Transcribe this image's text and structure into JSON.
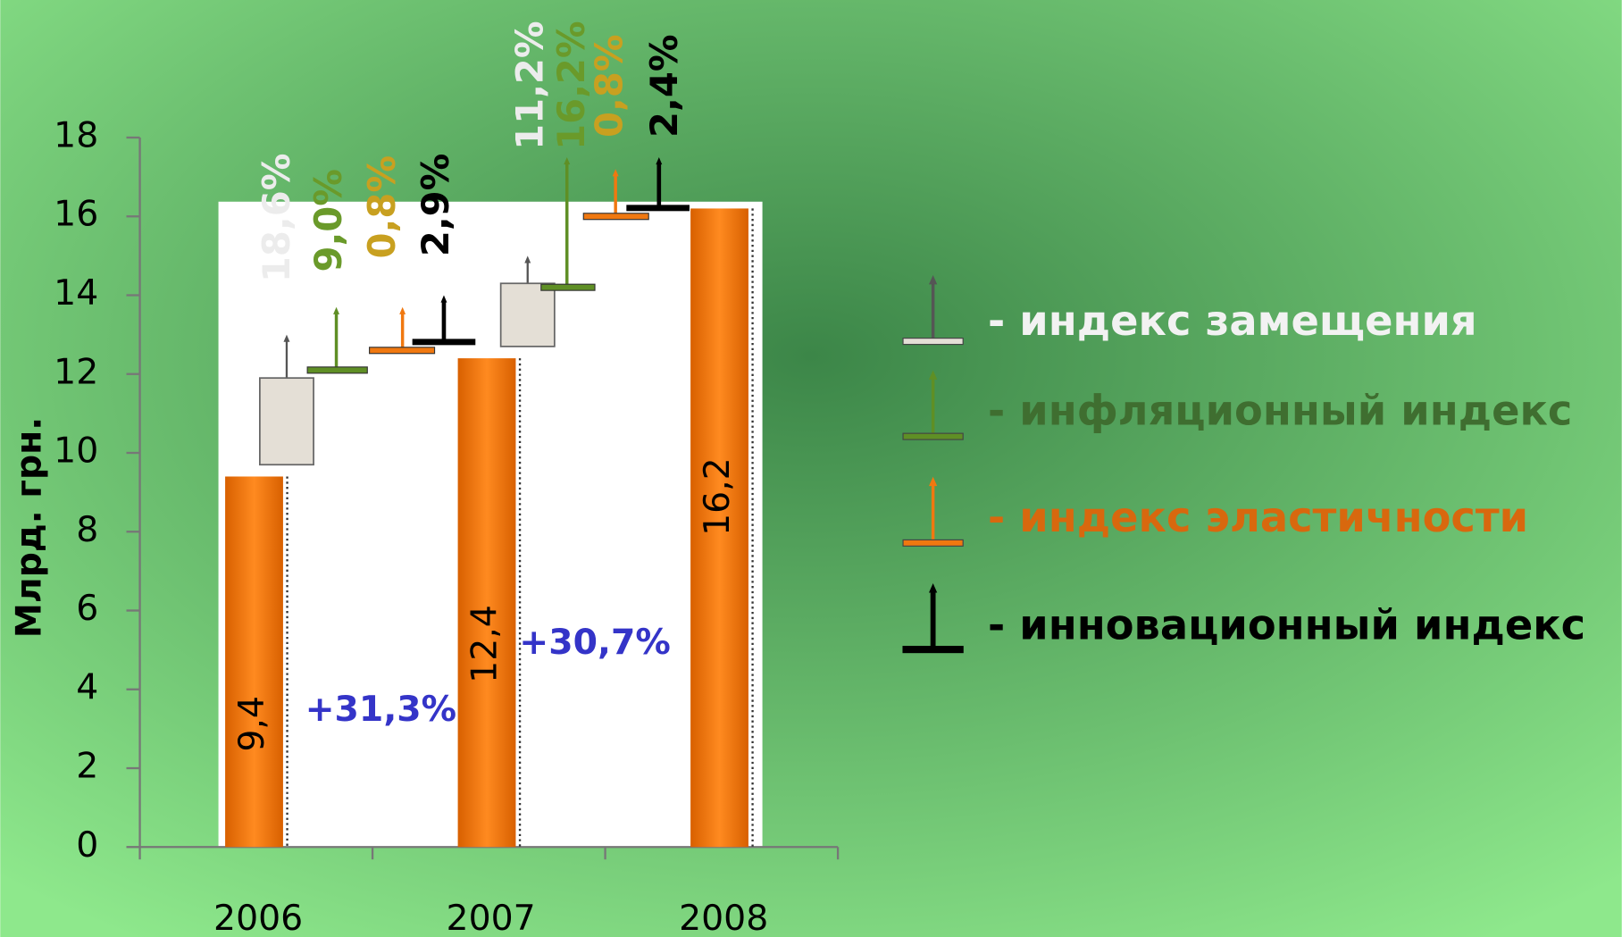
{
  "chart_data": {
    "type": "bar",
    "y_label": "Млрд. грн.",
    "categories": [
      "2006",
      "2007",
      "2008"
    ],
    "values": [
      9.4,
      12.4,
      16.2
    ],
    "value_labels": [
      "9,4",
      "12,4",
      "16,2"
    ],
    "color": "#f07810",
    "ylim": [
      0,
      18
    ],
    "yticks": [
      0,
      2,
      4,
      6,
      8,
      10,
      12,
      14,
      16,
      18
    ],
    "annotations": [
      "+31,3%",
      "+30,7%"
    ],
    "legend": [
      {
        "name": "- индекс замещения",
        "color": "#e4dfd6",
        "text_color": "#f2f2f2"
      },
      {
        "name": "- инфляционный индекс",
        "color": "#5f8f25",
        "text_color": "#3f6e30"
      },
      {
        "name": "- индекс  эластичности",
        "color": "#f07810",
        "text_color": "#d8680e"
      },
      {
        "name": "- инновационный индекс",
        "color": "#000000",
        "text_color": "#000000"
      }
    ],
    "steps": [
      {
        "items": [
          {
            "low": 9.7,
            "high": 11.9,
            "top": 13.0,
            "label": "18,6%",
            "label_color": "#ececec"
          },
          {
            "low": 12.1,
            "high": 12.1,
            "top": 13.7,
            "label": "9,0%",
            "label_color": "#6a9a2a"
          },
          {
            "low": 12.6,
            "high": 12.6,
            "top": 13.7,
            "label": "0,8%",
            "label_color": "#c8a020"
          },
          {
            "low": 12.8,
            "high": 12.8,
            "top": 14.0,
            "label": "2,9%",
            "label_color": "#000000"
          }
        ]
      },
      {
        "items": [
          {
            "low": 12.7,
            "high": 14.3,
            "top": 15.0,
            "label": "11,2%",
            "label_color": "#ececec"
          },
          {
            "low": 14.2,
            "high": 14.2,
            "top": 17.5,
            "label": "16,2%",
            "label_color": "#6a9a2a"
          },
          {
            "low": 16.0,
            "high": 16.0,
            "top": 17.2,
            "label": "0,8%",
            "label_color": "#c8a020"
          },
          {
            "low": 16.2,
            "high": 16.2,
            "top": 17.5,
            "label": "2,4%",
            "label_color": "#000000"
          }
        ]
      }
    ]
  }
}
